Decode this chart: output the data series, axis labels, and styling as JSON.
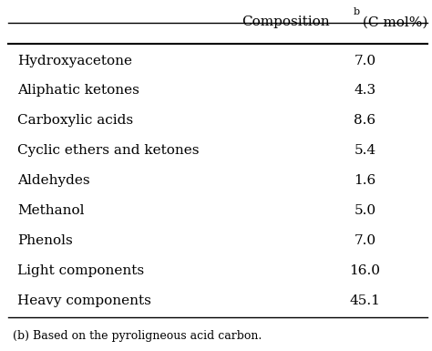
{
  "col_header": "Composition",
  "col_header_superscript": "b",
  "col_header_unit": "(C mol%)",
  "rows": [
    {
      "component": "Hydroxyacetone",
      "value": "7.0"
    },
    {
      "component": "Aliphatic ketones",
      "value": "4.3"
    },
    {
      "component": "Carboxylic acids",
      "value": "8.6"
    },
    {
      "component": "Cyclic ethers and ketones",
      "value": "5.4"
    },
    {
      "component": "Aldehydes",
      "value": "1.6"
    },
    {
      "component": "Methanol",
      "value": "5.0"
    },
    {
      "component": "Phenols",
      "value": "7.0"
    },
    {
      "component": "Light components",
      "value": "16.0"
    },
    {
      "component": "Heavy components",
      "value": "45.1"
    }
  ],
  "footnote": "(b) Based on the pyroligneous acid carbon.",
  "bg_color": "#ffffff",
  "text_color": "#000000",
  "font_size": 11,
  "footnote_font_size": 9,
  "header_font_size": 11
}
